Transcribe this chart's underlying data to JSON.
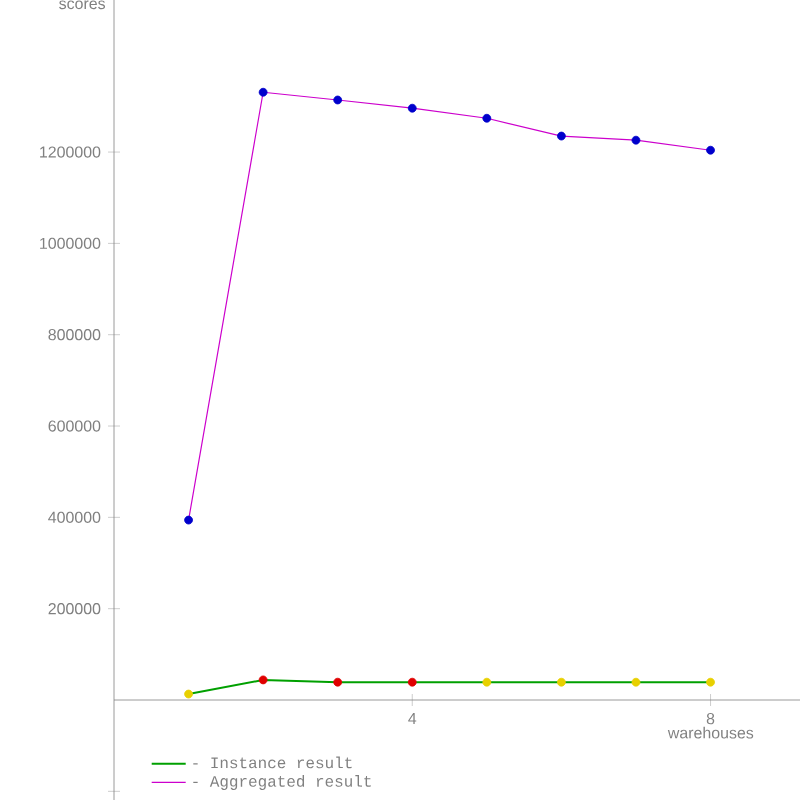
{
  "chart_data": {
    "type": "line",
    "xlabel": "warehouses",
    "ylabel": "scores",
    "x": [
      1,
      2,
      3,
      4,
      5,
      6,
      7,
      8
    ],
    "series": [
      {
        "name": "- Instance result",
        "color": "#00a000",
        "colors": [
          "#e8d000",
          "#e00000",
          "#e00000",
          "#e00000",
          "#e8d000",
          "#e8d000",
          "#e8d000",
          "#e8d000"
        ],
        "values": [
          13000,
          44000,
          39000,
          39000,
          39000,
          39000,
          39000,
          39000
        ]
      },
      {
        "name": "- Aggregated result",
        "color": "#cc00cc",
        "colors": [
          "#0000cc",
          "#0000cc",
          "#0000cc",
          "#0000cc",
          "#0000cc",
          "#0000cc",
          "#0000cc",
          "#0000cc"
        ],
        "values": [
          394000,
          1331000,
          1314000,
          1296000,
          1274000,
          1235000,
          1226000,
          1204000
        ]
      }
    ],
    "xlim": [
      0,
      9.2
    ],
    "ylim": [
      -219000,
      1533000
    ],
    "xticks": [
      4,
      8
    ],
    "yticks": [
      {
        "value": -200000,
        "label": null
      },
      200000,
      400000,
      600000,
      800000,
      1000000,
      1200000
    ],
    "marker": "circle",
    "line_style": "solid",
    "grid": false,
    "legend": "bottom left"
  }
}
